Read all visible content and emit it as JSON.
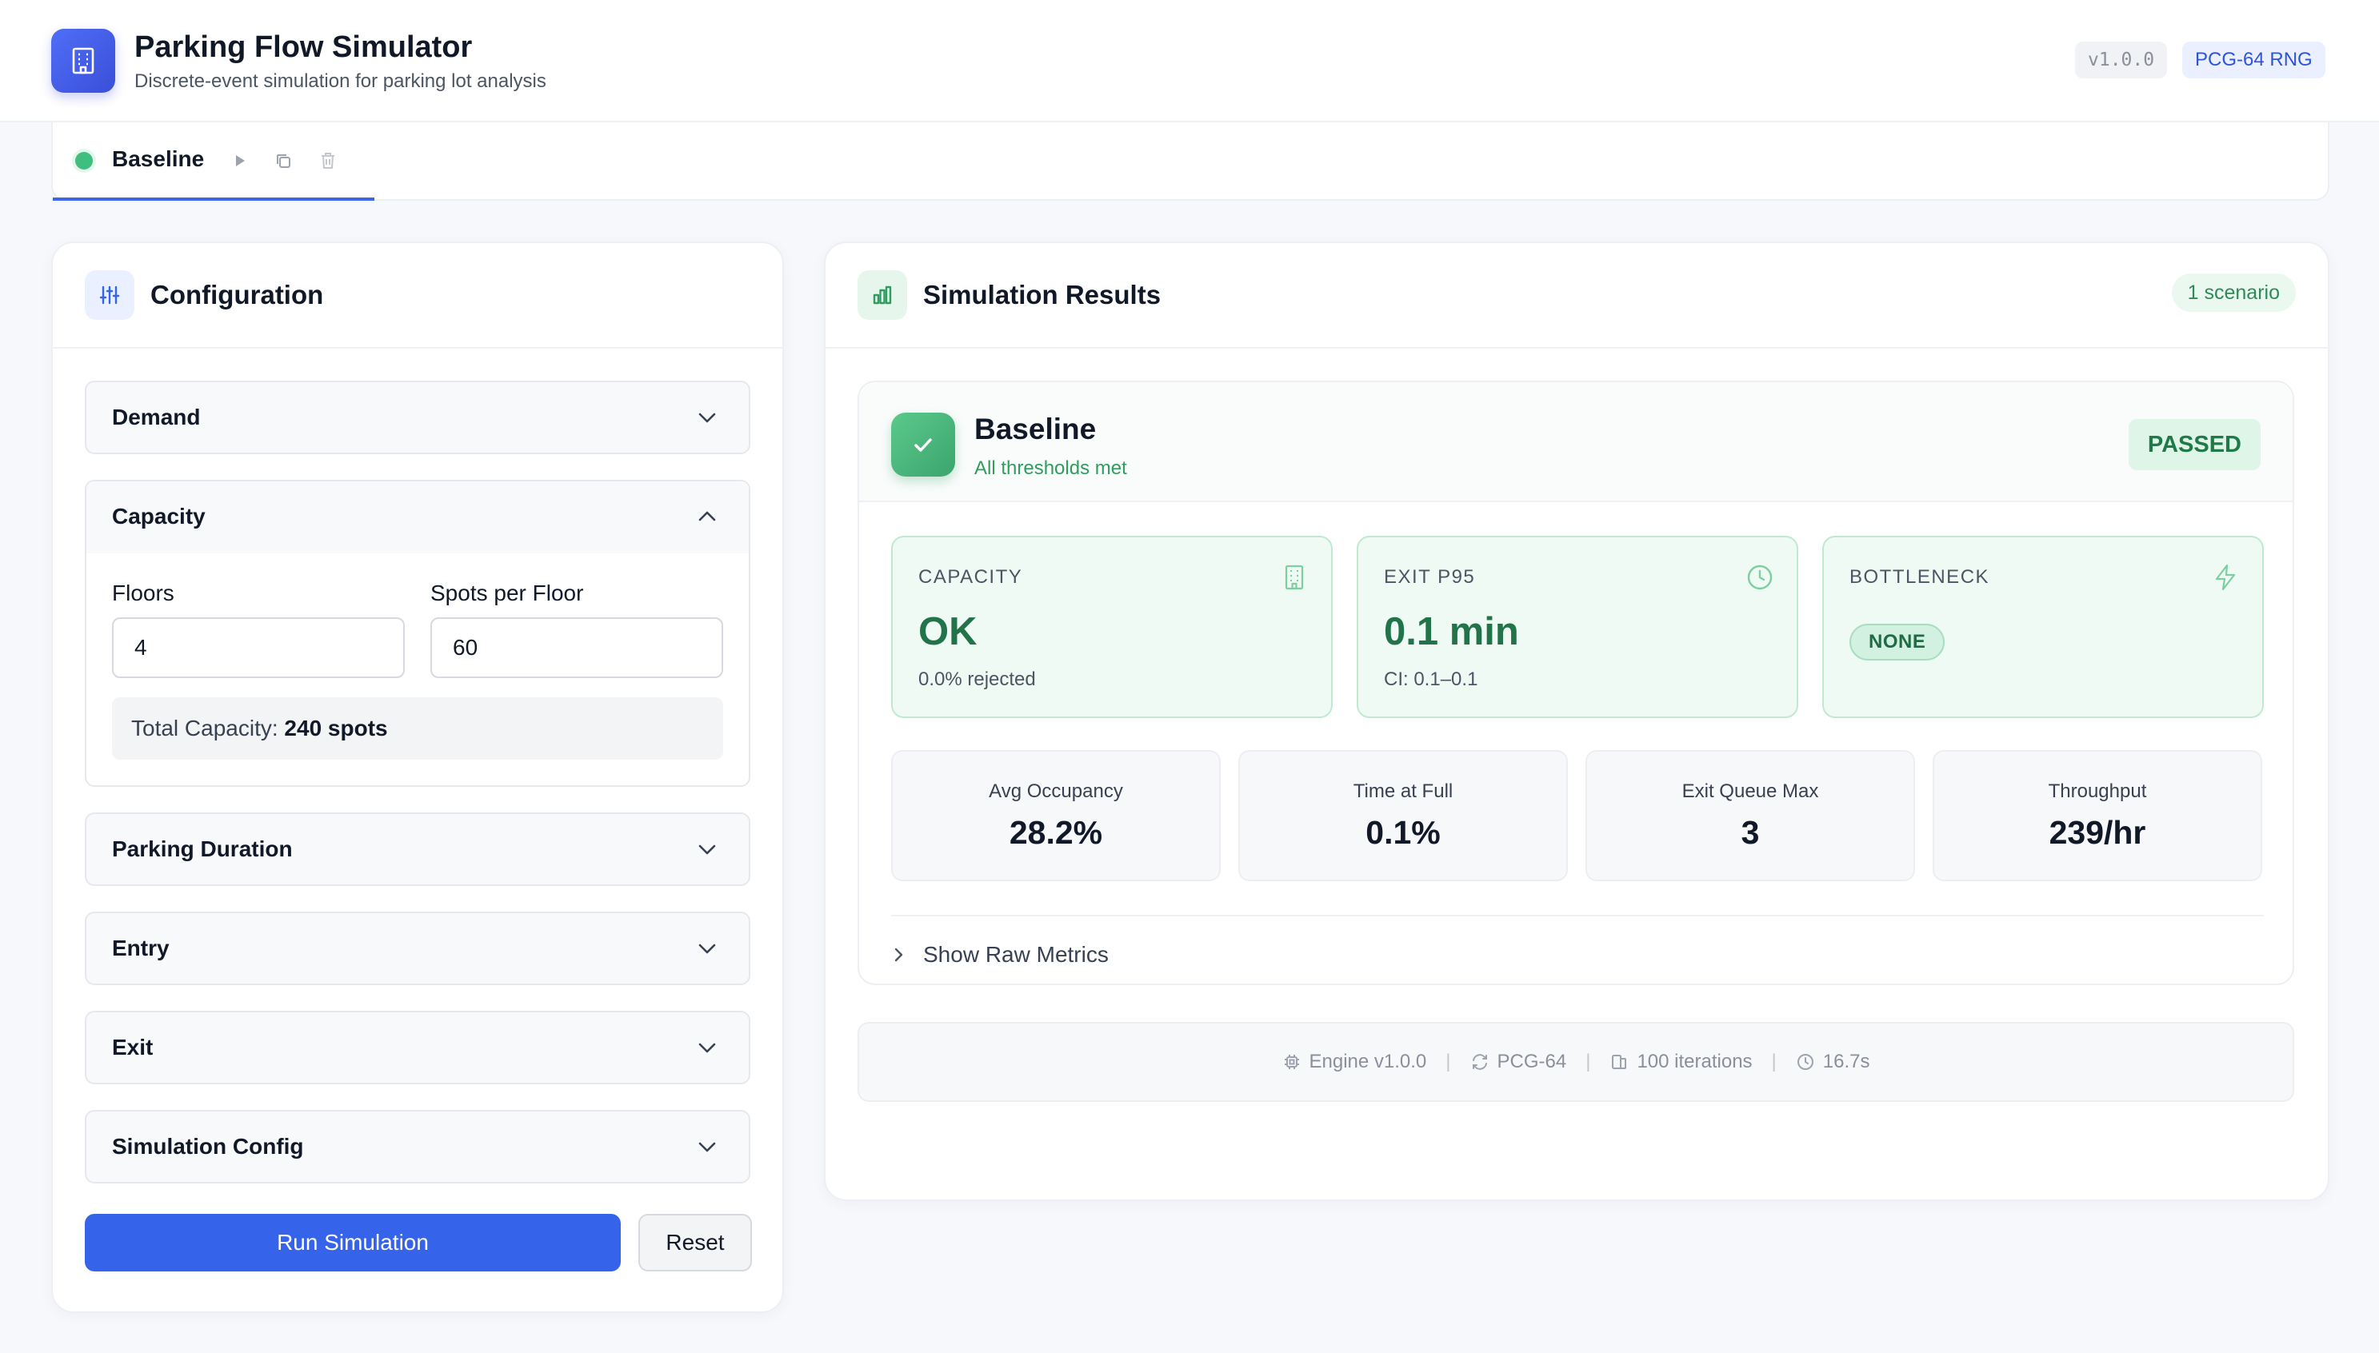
{
  "header": {
    "title": "Parking Flow Simulator",
    "subtitle": "Discrete-event simulation for parking lot analysis",
    "version_badge": "v1.0.0",
    "rng_badge": "PCG-64 RNG"
  },
  "tabs": [
    {
      "label": "Baseline",
      "status_color": "#3fbf7f",
      "active": true
    }
  ],
  "config": {
    "title": "Configuration",
    "sections": {
      "demand": {
        "label": "Demand",
        "expanded": false
      },
      "capacity": {
        "label": "Capacity",
        "expanded": true,
        "floors_label": "Floors",
        "floors_value": "4",
        "spots_label": "Spots per Floor",
        "spots_value": "60",
        "total_label": "Total Capacity:",
        "total_value": "240 spots"
      },
      "parking_duration": {
        "label": "Parking Duration",
        "expanded": false
      },
      "entry": {
        "label": "Entry",
        "expanded": false
      },
      "exit": {
        "label": "Exit",
        "expanded": false
      },
      "simulation_config": {
        "label": "Simulation Config",
        "expanded": false
      }
    },
    "run_label": "Run Simulation",
    "reset_label": "Reset"
  },
  "results": {
    "title": "Simulation Results",
    "scenario_count": "1 scenario",
    "scenario": {
      "name": "Baseline",
      "subtitle": "All thresholds met",
      "status": "PASSED",
      "metrics": {
        "capacity": {
          "label": "CAPACITY",
          "value": "OK",
          "sub": "0.0% rejected",
          "icon": "building-icon"
        },
        "exit_p95": {
          "label": "EXIT P95",
          "value": "0.1 min",
          "sub": "CI: 0.1–0.1",
          "icon": "clock-icon"
        },
        "bottleneck": {
          "label": "BOTTLENECK",
          "value": "NONE",
          "icon": "lightning-icon"
        }
      },
      "stats": {
        "avg_occupancy": {
          "label": "Avg Occupancy",
          "value": "28.2%"
        },
        "time_at_full": {
          "label": "Time at Full",
          "value": "0.1%"
        },
        "exit_queue_max": {
          "label": "Exit Queue Max",
          "value": "3"
        },
        "throughput": {
          "label": "Throughput",
          "value": "239/hr"
        }
      },
      "raw_toggle": "Show Raw Metrics"
    },
    "footer": {
      "engine": "Engine v1.0.0",
      "rng": "PCG-64",
      "iterations": "100 iterations",
      "duration": "16.7s"
    }
  },
  "colors": {
    "accent": "#3563e9",
    "success": "#2e9d5f",
    "success_bg": "#eefaf3"
  }
}
